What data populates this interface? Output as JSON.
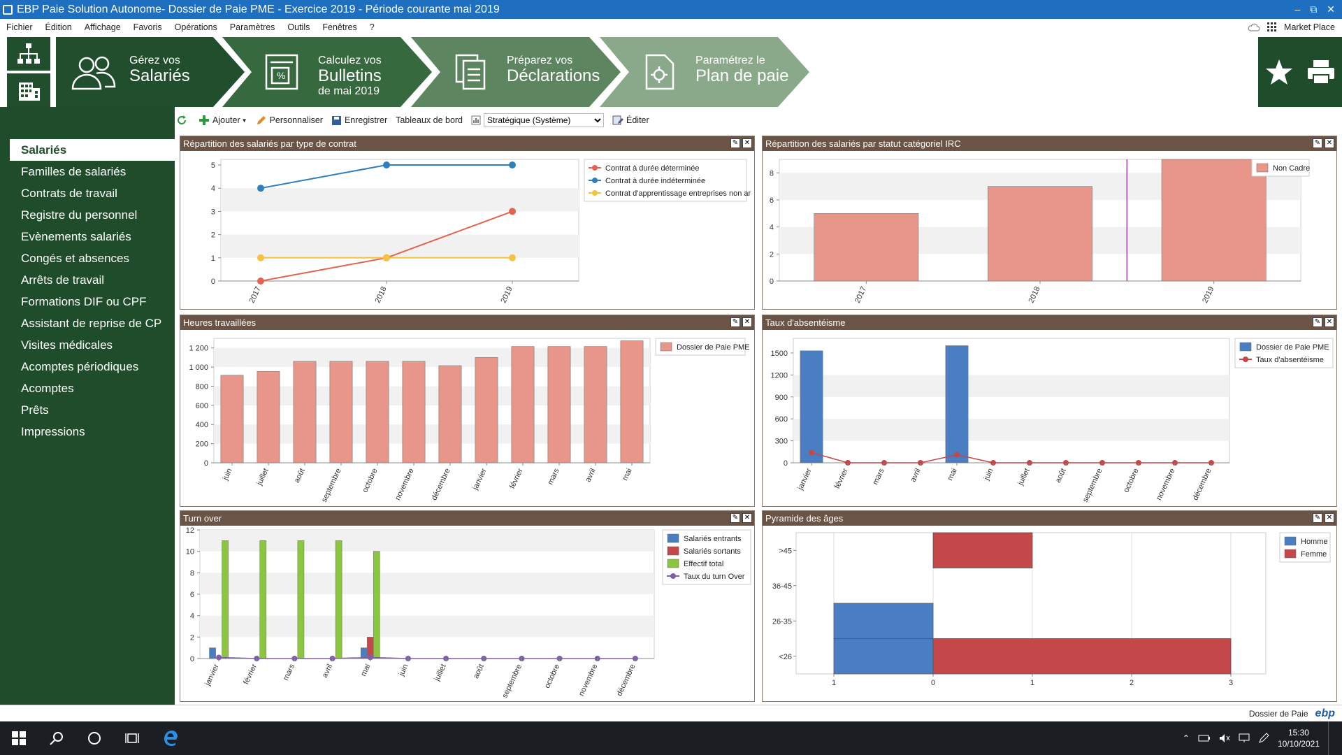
{
  "window": {
    "title": "EBP Paie Solution Autonome- Dossier de Paie PME - Exercice 2019 - Période courante mai 2019",
    "controls": [
      "‒",
      "⧉",
      "✕"
    ]
  },
  "menu": {
    "items": [
      "Fichier",
      "Édition",
      "Affichage",
      "Favoris",
      "Opérations",
      "Paramètres",
      "Outils",
      "Fenêtres",
      "?"
    ],
    "market": "Market Place"
  },
  "steps": [
    {
      "l1": "Gérez vos",
      "l2": "Salariés",
      "l3": ""
    },
    {
      "l1": "Calculez vos",
      "l2": "Bulletins",
      "l3": "de mai 2019"
    },
    {
      "l1": "Préparez vos",
      "l2": "Déclarations",
      "l3": ""
    },
    {
      "l1": "Paramétrez le",
      "l2": "Plan de paie",
      "l3": ""
    }
  ],
  "sidebar": {
    "items": [
      "Salariés",
      "Familles de salariés",
      "Contrats de travail",
      "Registre du personnel",
      "Evènements salariés",
      "Congés et absences",
      "Arrêts de travail",
      "Formations DIF ou CPF",
      "Assistant de reprise de CP",
      "Visites médicales",
      "Acomptes périodiques",
      "Acomptes",
      "Prêts",
      "Impressions"
    ]
  },
  "toolbar": {
    "add": "Ajouter",
    "customize": "Personnaliser",
    "save": "Enregistrer",
    "dashboards": "Tableaux de bord",
    "dashboard_selected": "Stratégique (Système)",
    "edit": "Éditer"
  },
  "colors": {
    "brand_green": "#1f4d2b",
    "panel_header": "#6a5446",
    "salmon": "#e8968a",
    "blue": "#4a7ec2",
    "red": "#c4474a",
    "green": "#8cc63f",
    "purple": "#7f5fa8",
    "orange": "#e2644f",
    "yellow": "#f5c242",
    "line_blue": "#2e7fbd"
  },
  "statusbar": {
    "text": "Dossier de Paie",
    "logo": "ebp"
  },
  "taskbar": {
    "time": "15:30",
    "date": "10/10/2021"
  },
  "chart_data": [
    {
      "id": "contracts",
      "type": "line",
      "title": "Répartition des salariés par type de contrat",
      "categories": [
        "2017",
        "2018",
        "2019"
      ],
      "ylim": [
        0,
        5
      ],
      "yticks": [
        0,
        1,
        2,
        3,
        4,
        5
      ],
      "series": [
        {
          "name": "Contrat à durée déterminée",
          "color": "#e2644f",
          "values": [
            0,
            1,
            3
          ]
        },
        {
          "name": "Contrat à durée indéterminée",
          "color": "#2e7fbd",
          "values": [
            4,
            5,
            5
          ]
        },
        {
          "name": "Contrat d'apprentissage entreprises non ar",
          "color": "#f5c242",
          "values": [
            1,
            1,
            1
          ]
        }
      ]
    },
    {
      "id": "irc",
      "type": "bar",
      "title": "Répartition des salariés par statut catégoriel IRC",
      "categories": [
        "2017",
        "2018",
        "2019"
      ],
      "ylim": [
        0,
        9
      ],
      "yticks": [
        0,
        2,
        4,
        6,
        8
      ],
      "series": [
        {
          "name": "Non Cadre",
          "color": "#e8968a",
          "values": [
            5,
            7,
            9
          ]
        }
      ]
    },
    {
      "id": "hours",
      "type": "bar",
      "title": "Heures travaillées",
      "categories": [
        "juin",
        "juillet",
        "août",
        "septembre",
        "octobre",
        "novembre",
        "décembre",
        "janvier",
        "février",
        "mars",
        "avril",
        "mai"
      ],
      "ylim": [
        0,
        1300
      ],
      "yticks": [
        0,
        200,
        400,
        600,
        800,
        1000,
        1200
      ],
      "yticklabels": [
        "0",
        "200",
        "400",
        "600",
        "800",
        "1 000",
        "1 200"
      ],
      "series": [
        {
          "name": "Dossier de Paie PME",
          "color": "#e8968a",
          "values": [
            915,
            955,
            1060,
            1060,
            1060,
            1060,
            1015,
            1100,
            1215,
            1215,
            1215,
            1275
          ]
        }
      ]
    },
    {
      "id": "absence",
      "type": "bar",
      "title": "Taux d'absentéisme",
      "categories": [
        "janvier",
        "février",
        "mars",
        "avril",
        "mai",
        "juin",
        "juillet",
        "août",
        "septembre",
        "octobre",
        "novembre",
        "décembre"
      ],
      "ylim": [
        0,
        1700
      ],
      "yticks": [
        0,
        300,
        600,
        900,
        1200,
        1500
      ],
      "series": [
        {
          "name": "Dossier de Paie PME",
          "kind": "bar",
          "color": "#4a7ec2",
          "values": [
            1530,
            0,
            0,
            0,
            1600,
            0,
            0,
            0,
            0,
            0,
            0,
            0
          ]
        },
        {
          "name": "Taux d'absentéisme",
          "kind": "line",
          "color": "#c4474a",
          "values": [
            140,
            0,
            0,
            0,
            110,
            0,
            0,
            0,
            0,
            0,
            0,
            0
          ]
        }
      ]
    },
    {
      "id": "turnover",
      "type": "bar",
      "title": "Turn over",
      "categories": [
        "janvier",
        "février",
        "mars",
        "avril",
        "mai",
        "juin",
        "juillet",
        "août",
        "septembre",
        "octobre",
        "novembre",
        "décembre"
      ],
      "ylim": [
        0,
        12
      ],
      "yticks": [
        0,
        2,
        4,
        6,
        8,
        10,
        12
      ],
      "series": [
        {
          "name": "Salariés entrants",
          "kind": "bar",
          "color": "#4a7ec2",
          "values": [
            1,
            0,
            0,
            0,
            1,
            0,
            0,
            0,
            0,
            0,
            0,
            0
          ]
        },
        {
          "name": "Salariés sortants",
          "kind": "bar",
          "color": "#c4474a",
          "values": [
            0,
            0,
            0,
            0,
            2,
            0,
            0,
            0,
            0,
            0,
            0,
            0
          ]
        },
        {
          "name": "Effectif total",
          "kind": "bar",
          "color": "#8cc63f",
          "values": [
            11,
            11,
            11,
            11,
            10,
            0,
            0,
            0,
            0,
            0,
            0,
            0
          ]
        },
        {
          "name": "Taux du turn Over",
          "kind": "line",
          "color": "#7f5fa8",
          "values": [
            0.1,
            0,
            0,
            0,
            0.1,
            0,
            0,
            0,
            0,
            0,
            0,
            0
          ]
        }
      ]
    },
    {
      "id": "pyramid",
      "type": "bar",
      "title": "Pyramide des âges",
      "categories": [
        "<26",
        "26-35",
        "36-45",
        ">45"
      ],
      "xticks": [
        "1",
        "0",
        "1",
        "2",
        "3"
      ],
      "series": [
        {
          "name": "Homme",
          "color": "#4a7ec2",
          "values": [
            1,
            1,
            0,
            0
          ]
        },
        {
          "name": "Femme",
          "color": "#c4474a",
          "values": [
            3,
            0,
            0,
            1
          ]
        }
      ]
    }
  ]
}
